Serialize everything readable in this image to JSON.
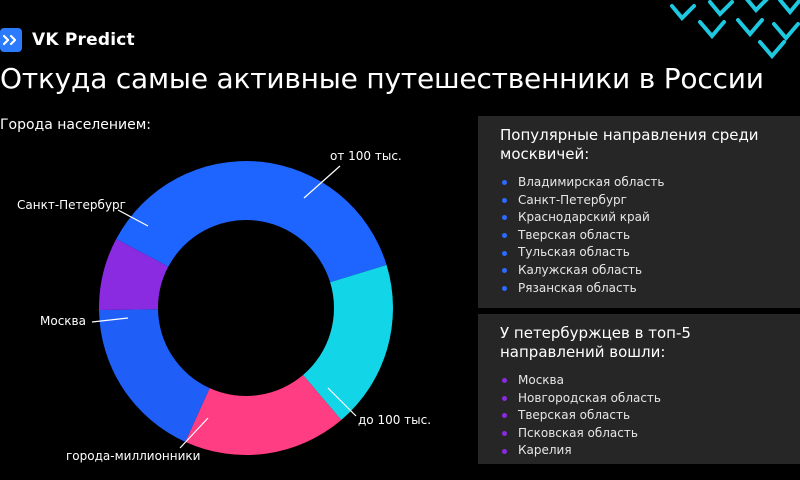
{
  "brand": {
    "name": "VK Predict"
  },
  "title": "Откуда самые активные путешественники в России",
  "subtitle": "Города населением:",
  "colors": {
    "background": "#000000",
    "panel": "#262626",
    "brand": "#2b7bff",
    "accent": "#1ec8e0",
    "moscow_dot": "#2b6bff",
    "spb_dot": "#8a2be2"
  },
  "chart_data": {
    "type": "pie",
    "variant": "donut",
    "title": "Города населением:",
    "legend": "none",
    "slices": [
      {
        "label": "от 100 тыс.",
        "value": 37.5,
        "color": "#1e64ff"
      },
      {
        "label": "до 100 тыс.",
        "value": 18.5,
        "color": "#12d6e8"
      },
      {
        "label": "города-миллионники",
        "value": 18,
        "color": "#ff3d82"
      },
      {
        "label": "Москва",
        "value": 18,
        "color": "#1f5ff8"
      },
      {
        "label": "Санкт-Петербург",
        "value": 8,
        "color": "#8a2be2"
      }
    ]
  },
  "panels": {
    "moscow": {
      "title": "Популярные направления среди москвичей:",
      "items": [
        "Владимирская область",
        "Санкт-Петербург",
        "Краснодарский край",
        "Тверская область",
        "Тульская область",
        "Калужская область",
        "Рязанская область"
      ]
    },
    "spb": {
      "title": "У петербуржцев в топ-5 направлений вошли:",
      "items": [
        "Москва",
        "Новгородская область",
        "Тверская область",
        "Псковская область",
        "Карелия"
      ]
    }
  }
}
